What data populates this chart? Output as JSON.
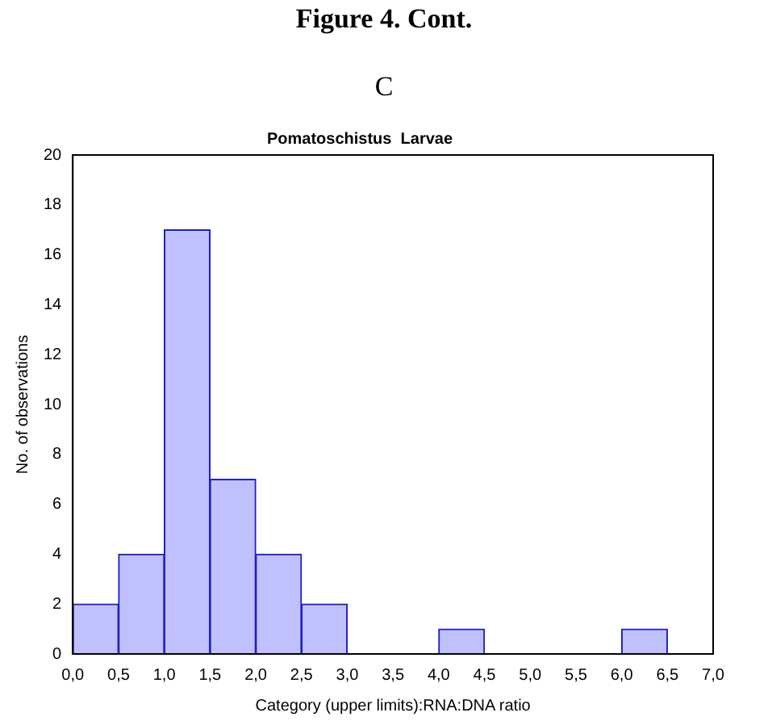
{
  "chart_data": {
    "type": "histogram",
    "title": "Pomatoschistus  Larvae",
    "annotations": [
      "Figure 4. Cont.",
      "C"
    ],
    "xlabel": "Category (upper limits):RNA:DNA ratio",
    "ylabel": "No. of observations",
    "bins": [
      0,
      0.5,
      1,
      1.5,
      2,
      2.5,
      3,
      3.5,
      4,
      4.5,
      5,
      5.5,
      6,
      6.5,
      7
    ],
    "values": [
      2,
      4,
      17,
      7,
      4,
      2,
      0,
      0,
      1,
      0,
      0,
      0,
      1,
      0
    ],
    "color": "#c0c0ff",
    "xlim": [
      0,
      7
    ],
    "xticks": [
      {
        "value": 0,
        "label": "0,0"
      },
      {
        "value": 0.5,
        "label": "0,5"
      },
      {
        "value": 1,
        "label": "1,0"
      },
      {
        "value": 1.5,
        "label": "1,5"
      },
      {
        "value": 2,
        "label": "2,0"
      },
      {
        "value": 2.5,
        "label": "2,5"
      },
      {
        "value": 3,
        "label": "3,0"
      },
      {
        "value": 3.5,
        "label": "3,5"
      },
      {
        "value": 4,
        "label": "4,0"
      },
      {
        "value": 4.5,
        "label": "4,5"
      },
      {
        "value": 5,
        "label": "5,0"
      },
      {
        "value": 5.5,
        "label": "5,5"
      },
      {
        "value": 6,
        "label": "6,0"
      },
      {
        "value": 6.5,
        "label": "6,5"
      },
      {
        "value": 7,
        "label": "7,0"
      }
    ],
    "ylim": [
      0,
      20
    ],
    "yticks": [
      0,
      2,
      4,
      6,
      8,
      10,
      12,
      14,
      16,
      18,
      20
    ],
    "grid": false,
    "legend": false
  }
}
